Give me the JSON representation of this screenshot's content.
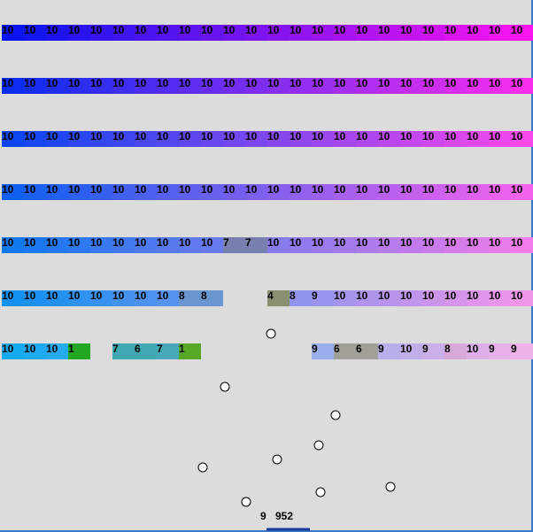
{
  "rows": [
    [
      "10",
      "10",
      "10",
      "10",
      "10",
      "10",
      "10",
      "10",
      "10",
      "10",
      "10",
      "10",
      "10",
      "10",
      "10",
      "10",
      "10",
      "10",
      "10",
      "10",
      "10",
      "10",
      "10",
      "10"
    ],
    [
      "10",
      "10",
      "10",
      "10",
      "10",
      "10",
      "10",
      "10",
      "10",
      "10",
      "10",
      "10",
      "10",
      "10",
      "10",
      "10",
      "10",
      "10",
      "10",
      "10",
      "10",
      "10",
      "10",
      "10"
    ],
    [
      "10",
      "10",
      "10",
      "10",
      "10",
      "10",
      "10",
      "10",
      "10",
      "10",
      "10",
      "10",
      "10",
      "10",
      "10",
      "10",
      "10",
      "10",
      "10",
      "10",
      "10",
      "10",
      "10",
      "10"
    ],
    [
      "10",
      "10",
      "10",
      "10",
      "10",
      "10",
      "10",
      "10",
      "10",
      "10",
      "10",
      "10",
      "10",
      "10",
      "10",
      "10",
      "10",
      "10",
      "10",
      "10",
      "10",
      "10",
      "10",
      "10"
    ],
    [
      "10",
      "10",
      "10",
      "10",
      "10",
      "10",
      "10",
      "10",
      "10",
      "10",
      {
        "text": "7",
        "color": "#7880b0"
      },
      {
        "text": "7",
        "color": "#7880b0"
      },
      "10",
      "10",
      "10",
      "10",
      "10",
      "10",
      "10",
      "10",
      "10",
      "10",
      "10",
      "10"
    ],
    [
      "10",
      "10",
      "10",
      "10",
      "10",
      "10",
      "10",
      "10",
      {
        "text": "8",
        "color": "#6a96d0"
      },
      {
        "text": "8",
        "color": "#6a96d0"
      },
      null,
      null,
      {
        "text": "4",
        "color": "#889070"
      },
      "8",
      "9",
      "10",
      "10",
      "10",
      "10",
      "10",
      "10",
      "10",
      "10",
      "10"
    ],
    [
      "10",
      "10",
      "10",
      {
        "text": "1",
        "color": "#22a722"
      },
      null,
      {
        "text": "7",
        "color": "#40a8b0"
      },
      {
        "text": "6",
        "color": "#40a8b0"
      },
      {
        "text": "7",
        "color": "#48a8b8"
      },
      {
        "text": "1",
        "color": "#58a828"
      },
      null,
      null,
      null,
      null,
      null,
      "9",
      {
        "text": "6",
        "color": "#a0a098"
      },
      {
        "text": "6",
        "color": "#a0a098"
      },
      "9",
      "10",
      "9",
      {
        "text": "8",
        "color": "#d8a8d8"
      },
      "10",
      "9",
      "9"
    ]
  ],
  "status": {
    "lives": "9",
    "score": "952"
  }
}
